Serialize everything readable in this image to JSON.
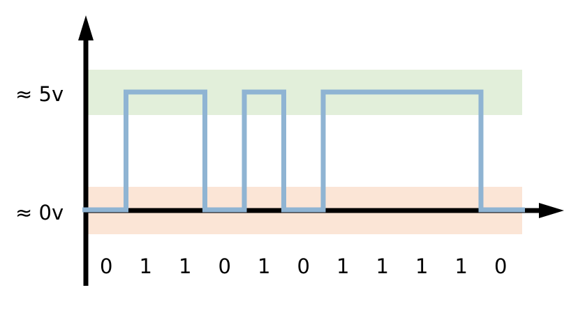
{
  "diagram": {
    "labels": {
      "high": "≈ 5v",
      "low": "≈ 0v"
    },
    "bits": [
      "0",
      "1",
      "1",
      "0",
      "1",
      "0",
      "1",
      "1",
      "1",
      "1",
      "0"
    ],
    "colors": {
      "high_band": "#e2efda",
      "low_band": "#fbe5d6",
      "signal": "#8fb4d3",
      "axis": "#000000",
      "background": "#ffffff"
    }
  }
}
